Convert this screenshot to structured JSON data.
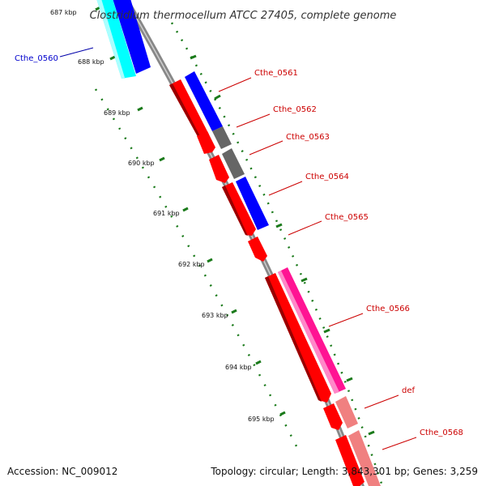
{
  "title": "Clostridium thermocellum ATCC 27405, complete genome",
  "footer": {
    "accession": "Accession: NC_009012",
    "summary": "Topology: circular; Length: 3,843,301 bp; Genes: 3,259"
  },
  "scale": {
    "unit": "kbp",
    "labels": [
      "687 kbp",
      "688 kbp",
      "689 kbp",
      "690 kbp",
      "691 kbp",
      "692 kbp",
      "693 kbp",
      "694 kbp",
      "695 kbp"
    ]
  },
  "genes": [
    {
      "label": "Cthe_0560",
      "color": "#0000cc"
    },
    {
      "label": "Cthe_0561",
      "color": "#cc0000"
    },
    {
      "label": "Cthe_0562",
      "color": "#cc0000"
    },
    {
      "label": "Cthe_0563",
      "color": "#cc0000"
    },
    {
      "label": "Cthe_0564",
      "color": "#cc0000"
    },
    {
      "label": "Cthe_0565",
      "color": "#cc0000"
    },
    {
      "label": "Cthe_0566",
      "color": "#cc0000"
    },
    {
      "label": "def",
      "color": "#cc0000"
    },
    {
      "label": "Cthe_0568",
      "color": "#cc0000"
    }
  ],
  "colors": {
    "backbone": "#808080",
    "cds": "#ff0000",
    "forward_blue": "#0000ff",
    "cyan": "#00ffff",
    "gray_feature": "#696969",
    "magenta": "#ff1493",
    "pink": "#f08080",
    "tick": "#006400"
  }
}
